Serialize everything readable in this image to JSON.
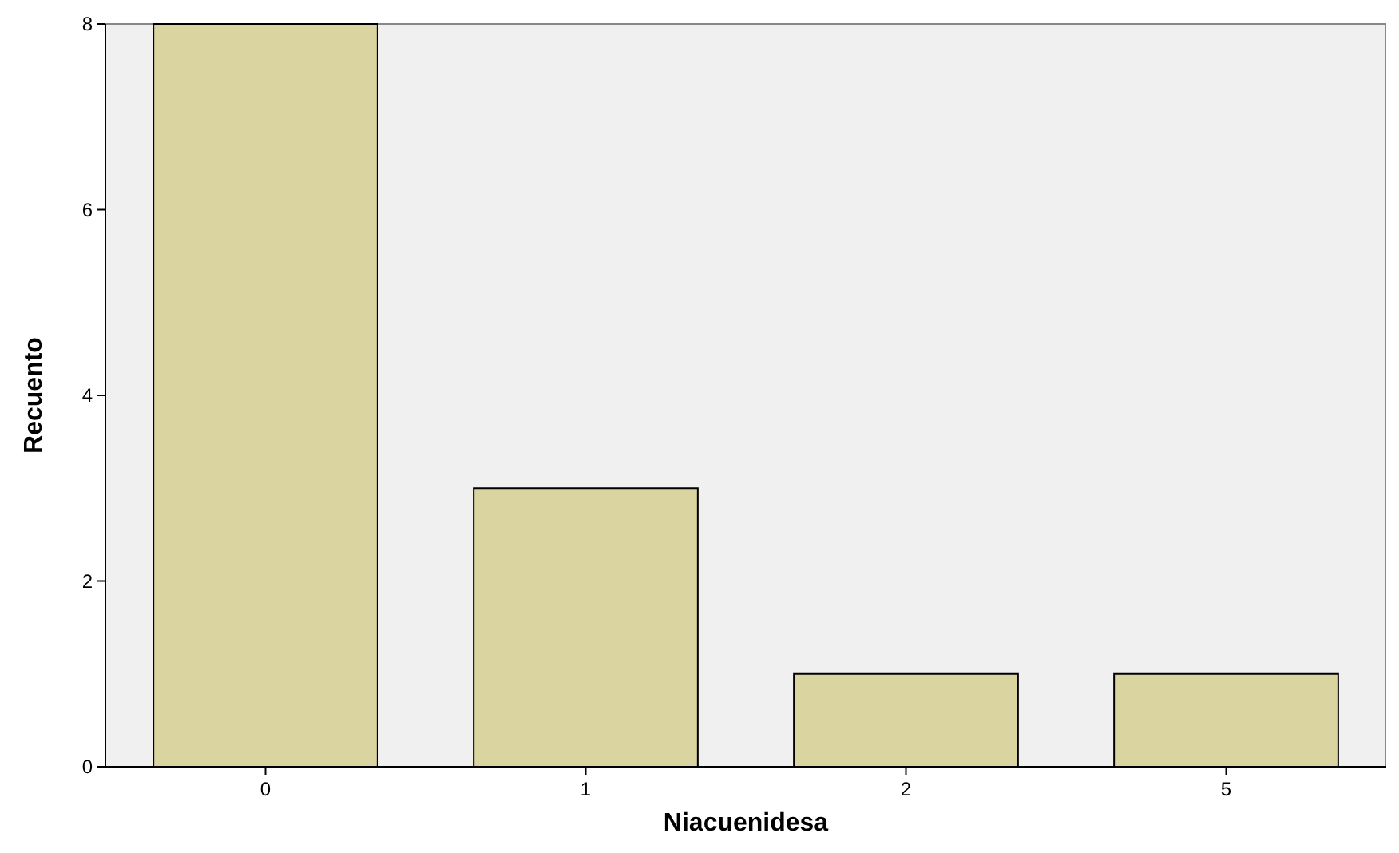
{
  "chart_data": {
    "type": "bar",
    "xlabel": "Niacuenidesa",
    "ylabel": "Recuento",
    "categories": [
      "0",
      "1",
      "2",
      "5"
    ],
    "values": [
      8,
      3,
      1,
      1
    ],
    "color": "#d9d4a0",
    "ylim": [
      0,
      8
    ],
    "yticks": [
      0,
      2,
      4,
      6,
      8
    ],
    "grid": false
  }
}
